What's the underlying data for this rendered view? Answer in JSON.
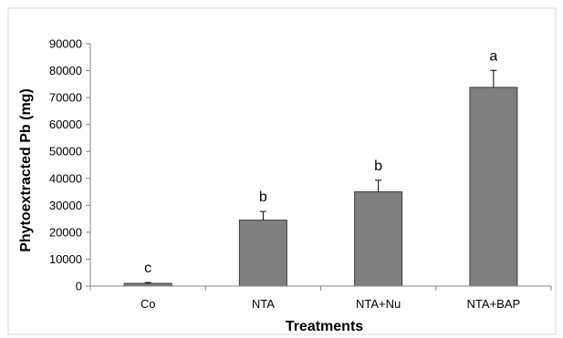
{
  "chart_data": {
    "type": "bar",
    "title": "",
    "xlabel": "Treatments",
    "ylabel": "Phytoextracted Pb (mg)",
    "categories": [
      "Co",
      "NTA",
      "NTA+Nu",
      "NTA+BAP"
    ],
    "values": [
      1000,
      24500,
      35000,
      73800
    ],
    "errors": [
      300,
      3200,
      4300,
      6300
    ],
    "significance_letters": [
      "c",
      "b",
      "b",
      "a"
    ],
    "ylim": [
      0,
      90000
    ],
    "yticks": [
      0,
      10000,
      20000,
      30000,
      40000,
      50000,
      60000,
      70000,
      80000,
      90000
    ],
    "ytick_labels": [
      "0",
      "10000",
      "20000",
      "30000",
      "40000",
      "50000",
      "60000",
      "70000",
      "80000",
      "90000"
    ],
    "grid": false,
    "legend": "none",
    "bar_color": "#7f7f7f",
    "bar_edge_color": "#3c3c3c"
  }
}
